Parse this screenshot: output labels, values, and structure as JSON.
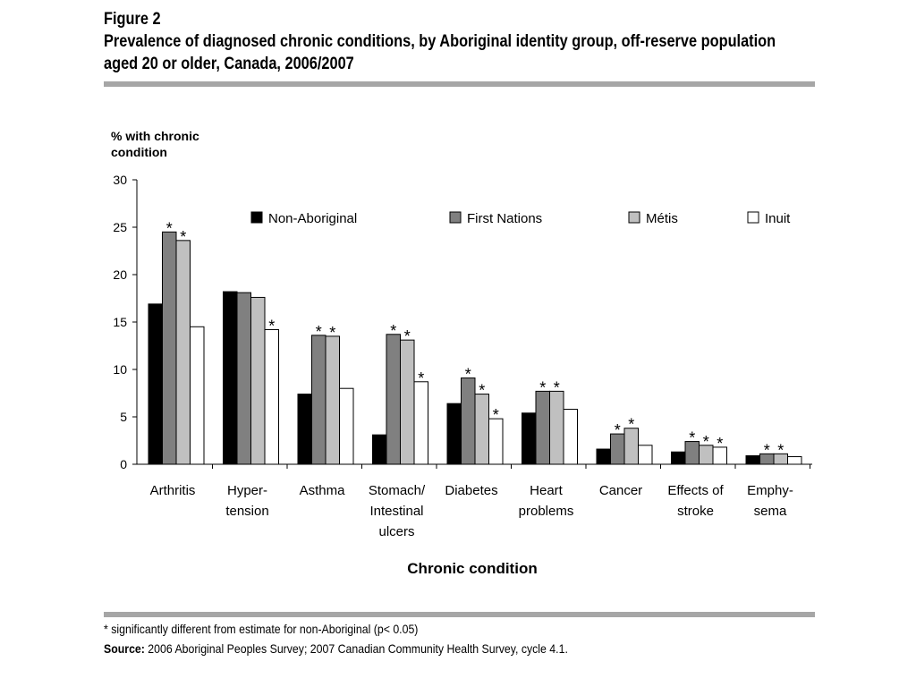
{
  "figure": {
    "label": "Figure 2",
    "title": "Prevalence of diagnosed chronic conditions, by Aboriginal identity group, off-reserve population aged 20 or older, Canada, 2006/2007"
  },
  "footnotes": {
    "significance": "*  significantly different from estimate for non-Aboriginal (p< 0.05)",
    "source_label": "Source:",
    "source_text": "2006 Aboriginal Peoples Survey; 2007 Canadian Community Health Survey, cycle 4.1."
  },
  "colors": {
    "non_aboriginal": "#000000",
    "first_nations": "#808080",
    "metis": "#c0c0c0",
    "inuit": "#ffffff",
    "rule": "#a6a6a6"
  },
  "chart_data": {
    "type": "bar",
    "ylabel": "% with chronic condition",
    "xlabel": "Chronic condition",
    "ylim": [
      0,
      30
    ],
    "yticks": [
      0,
      5,
      10,
      15,
      20,
      25,
      30
    ],
    "legend_position": "top",
    "categories": [
      [
        "Arthritis"
      ],
      [
        "Hyper-",
        "tension"
      ],
      [
        "Asthma"
      ],
      [
        "Stomach/",
        "Intestinal",
        "ulcers"
      ],
      [
        "Diabetes"
      ],
      [
        "Heart",
        "problems"
      ],
      [
        "Cancer"
      ],
      [
        "Effects of",
        "stroke"
      ],
      [
        "Emphy-",
        "sema"
      ]
    ],
    "series": [
      {
        "name": "Non-Aboriginal",
        "color": "#000000",
        "values": [
          16.9,
          18.2,
          7.4,
          3.1,
          6.4,
          5.4,
          1.6,
          1.3,
          0.9
        ],
        "significant": [
          false,
          false,
          false,
          false,
          false,
          false,
          false,
          false,
          false
        ]
      },
      {
        "name": "First Nations",
        "color": "#808080",
        "values": [
          24.5,
          18.1,
          13.6,
          13.7,
          9.1,
          7.7,
          3.2,
          2.4,
          1.1
        ],
        "significant": [
          true,
          false,
          true,
          true,
          true,
          true,
          true,
          true,
          true
        ]
      },
      {
        "name": "Métis",
        "color": "#c0c0c0",
        "values": [
          23.6,
          17.6,
          13.5,
          13.1,
          7.4,
          7.7,
          3.8,
          2.0,
          1.1
        ],
        "significant": [
          true,
          false,
          true,
          true,
          true,
          true,
          true,
          true,
          true
        ]
      },
      {
        "name": "Inuit",
        "color": "#ffffff",
        "values": [
          14.5,
          14.2,
          8.0,
          8.7,
          4.8,
          5.8,
          2.0,
          1.8,
          0.8
        ],
        "significant": [
          false,
          true,
          false,
          true,
          true,
          false,
          false,
          true,
          false
        ]
      }
    ],
    "significance_marker": "*"
  }
}
